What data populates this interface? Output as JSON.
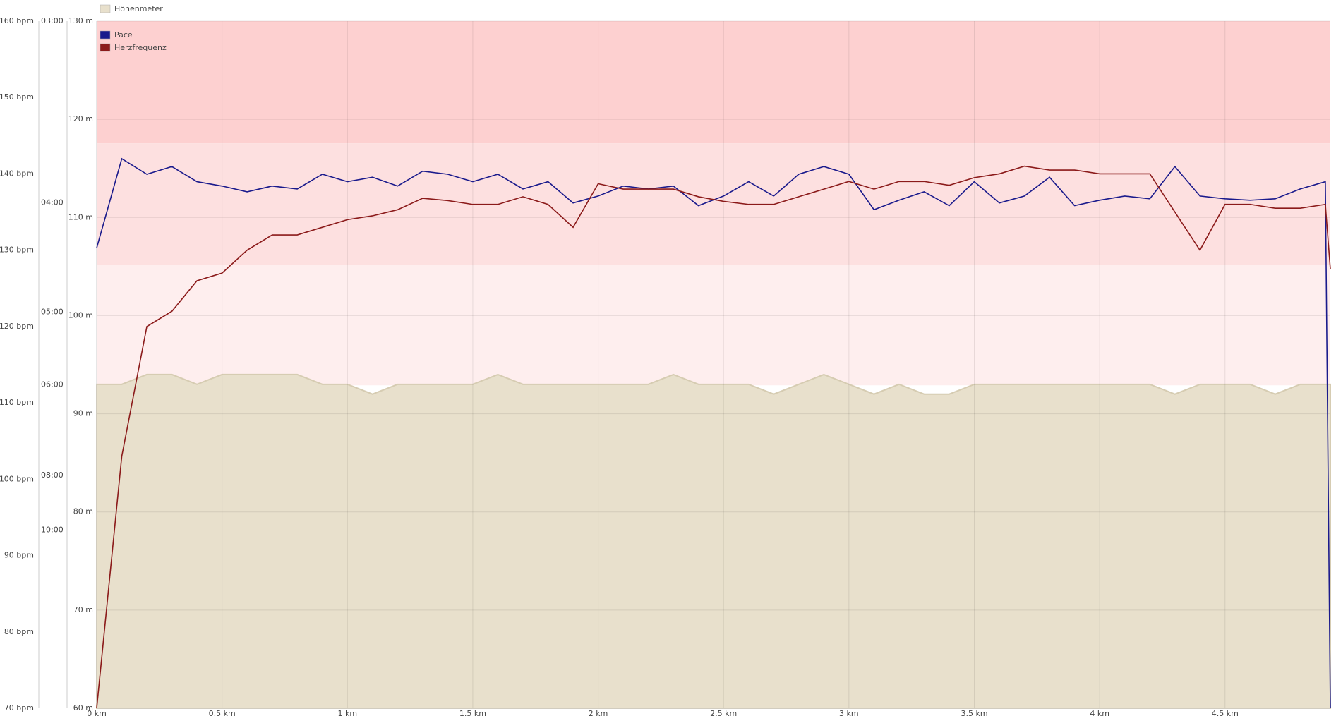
{
  "chart_data": {
    "type": "line",
    "x": [
      0,
      0.1,
      0.2,
      0.3,
      0.4,
      0.5,
      0.6,
      0.7,
      0.8,
      0.9,
      1.0,
      1.1,
      1.2,
      1.3,
      1.4,
      1.5,
      1.6,
      1.7,
      1.8,
      1.9,
      2.0,
      2.1,
      2.2,
      2.3,
      2.4,
      2.5,
      2.6,
      2.7,
      2.8,
      2.9,
      3.0,
      3.1,
      3.2,
      3.3,
      3.4,
      3.5,
      3.6,
      3.7,
      3.8,
      3.9,
      4.0,
      4.1,
      4.2,
      4.3,
      4.4,
      4.5,
      4.6,
      4.7,
      4.8,
      4.9,
      4.92
    ],
    "xlim": [
      0,
      4.92
    ],
    "xticks": [
      {
        "value": 0,
        "label": "0 km"
      },
      {
        "value": 0.5,
        "label": "0,5 km"
      },
      {
        "value": 1,
        "label": "1 km"
      },
      {
        "value": 1.5,
        "label": "1,5 km"
      },
      {
        "value": 2,
        "label": "2 km"
      },
      {
        "value": 2.5,
        "label": "2,5 km"
      },
      {
        "value": 3,
        "label": "3 km"
      },
      {
        "value": 3.5,
        "label": "3,5 km"
      },
      {
        "value": 4,
        "label": "4 km"
      },
      {
        "value": 4.5,
        "label": "4,5 km"
      }
    ],
    "ylim": [
      60,
      130
    ],
    "yticks": [
      {
        "value": 60,
        "label": "60 m"
      },
      {
        "value": 70,
        "label": "70 m"
      },
      {
        "value": 80,
        "label": "80 m"
      },
      {
        "value": 90,
        "label": "90 m"
      },
      {
        "value": 100,
        "label": "100 m"
      },
      {
        "value": 110,
        "label": "110 m"
      },
      {
        "value": 120,
        "label": "120 m"
      },
      {
        "value": 130,
        "label": "130 m"
      }
    ],
    "y2lim": [
      70,
      160
    ],
    "y2ticks": [
      {
        "value": 70,
        "label": "70 bpm"
      },
      {
        "value": 80,
        "label": "80 bpm"
      },
      {
        "value": 90,
        "label": "90 bpm"
      },
      {
        "value": 100,
        "label": "100 bpm"
      },
      {
        "value": 110,
        "label": "110 bpm"
      },
      {
        "value": 120,
        "label": "120 bpm"
      },
      {
        "value": 130,
        "label": "130 bpm"
      },
      {
        "value": 140,
        "label": "140 bpm"
      },
      {
        "value": 150,
        "label": "150 bpm"
      },
      {
        "value": 160,
        "label": "160 bpm"
      }
    ],
    "y3lim": [
      3,
      54.5
    ],
    "y3scale": "reciprocal",
    "y3ticks": [
      {
        "value": 3,
        "label": "03:00"
      },
      {
        "value": 4,
        "label": "04:00"
      },
      {
        "value": 5,
        "label": "05:00"
      },
      {
        "value": 6,
        "label": "06:00"
      },
      {
        "value": 8,
        "label": "08:00"
      },
      {
        "value": 10,
        "label": "10:00"
      }
    ],
    "grid": true,
    "legend": "top-left",
    "zones": [
      {
        "from": 144,
        "to": 160,
        "color": "#fdd0d0"
      },
      {
        "from": 128,
        "to": 144,
        "color": "#fde0e0"
      },
      {
        "from": 112.3,
        "to": 128,
        "color": "#feeeee"
      }
    ],
    "series": [
      {
        "name": "Höhenmeter",
        "color": "#e8e0cc",
        "type": "area",
        "values": [
          93,
          93,
          94,
          94,
          93,
          94,
          94,
          94,
          94,
          93,
          93,
          92,
          93,
          93,
          93,
          93,
          94,
          93,
          93,
          93,
          93,
          93,
          93,
          94,
          93,
          93,
          93,
          92,
          93,
          94,
          93,
          92,
          93,
          92,
          92,
          93,
          93,
          93,
          93,
          93,
          93,
          93,
          93,
          92,
          93,
          93,
          93,
          92,
          93,
          93,
          93
        ]
      },
      {
        "name": "Pace",
        "color": "#1a1a8c",
        "axis": "y3",
        "values": [
          4.36,
          3.7,
          3.8,
          3.75,
          3.85,
          3.88,
          3.92,
          3.88,
          3.9,
          3.8,
          3.85,
          3.82,
          3.88,
          3.78,
          3.8,
          3.85,
          3.8,
          3.9,
          3.85,
          4.0,
          3.95,
          3.88,
          3.9,
          3.88,
          4.02,
          3.95,
          3.85,
          3.95,
          3.8,
          3.75,
          3.8,
          4.05,
          3.98,
          3.92,
          4.02,
          3.85,
          4.0,
          3.95,
          3.82,
          4.02,
          3.98,
          3.95,
          3.97,
          3.75,
          3.95,
          3.97,
          3.98,
          3.97,
          3.9,
          3.85,
          54.5
        ]
      },
      {
        "name": "Herzfrequenz",
        "color": "#8b1a1a",
        "axis": "y2",
        "values": [
          70,
          103,
          120,
          122,
          126,
          127,
          130,
          132,
          132,
          133,
          134,
          134.5,
          135.3,
          136.8,
          136.5,
          136,
          136,
          137,
          136,
          133,
          138.7,
          138,
          138,
          138,
          137,
          136.4,
          136,
          136,
          137,
          138,
          139,
          138,
          139,
          139,
          138.5,
          139.5,
          140,
          141,
          140.5,
          140.5,
          140,
          140,
          140,
          135,
          130,
          136,
          136,
          135.5,
          135.5,
          136,
          127.5
        ]
      }
    ]
  }
}
